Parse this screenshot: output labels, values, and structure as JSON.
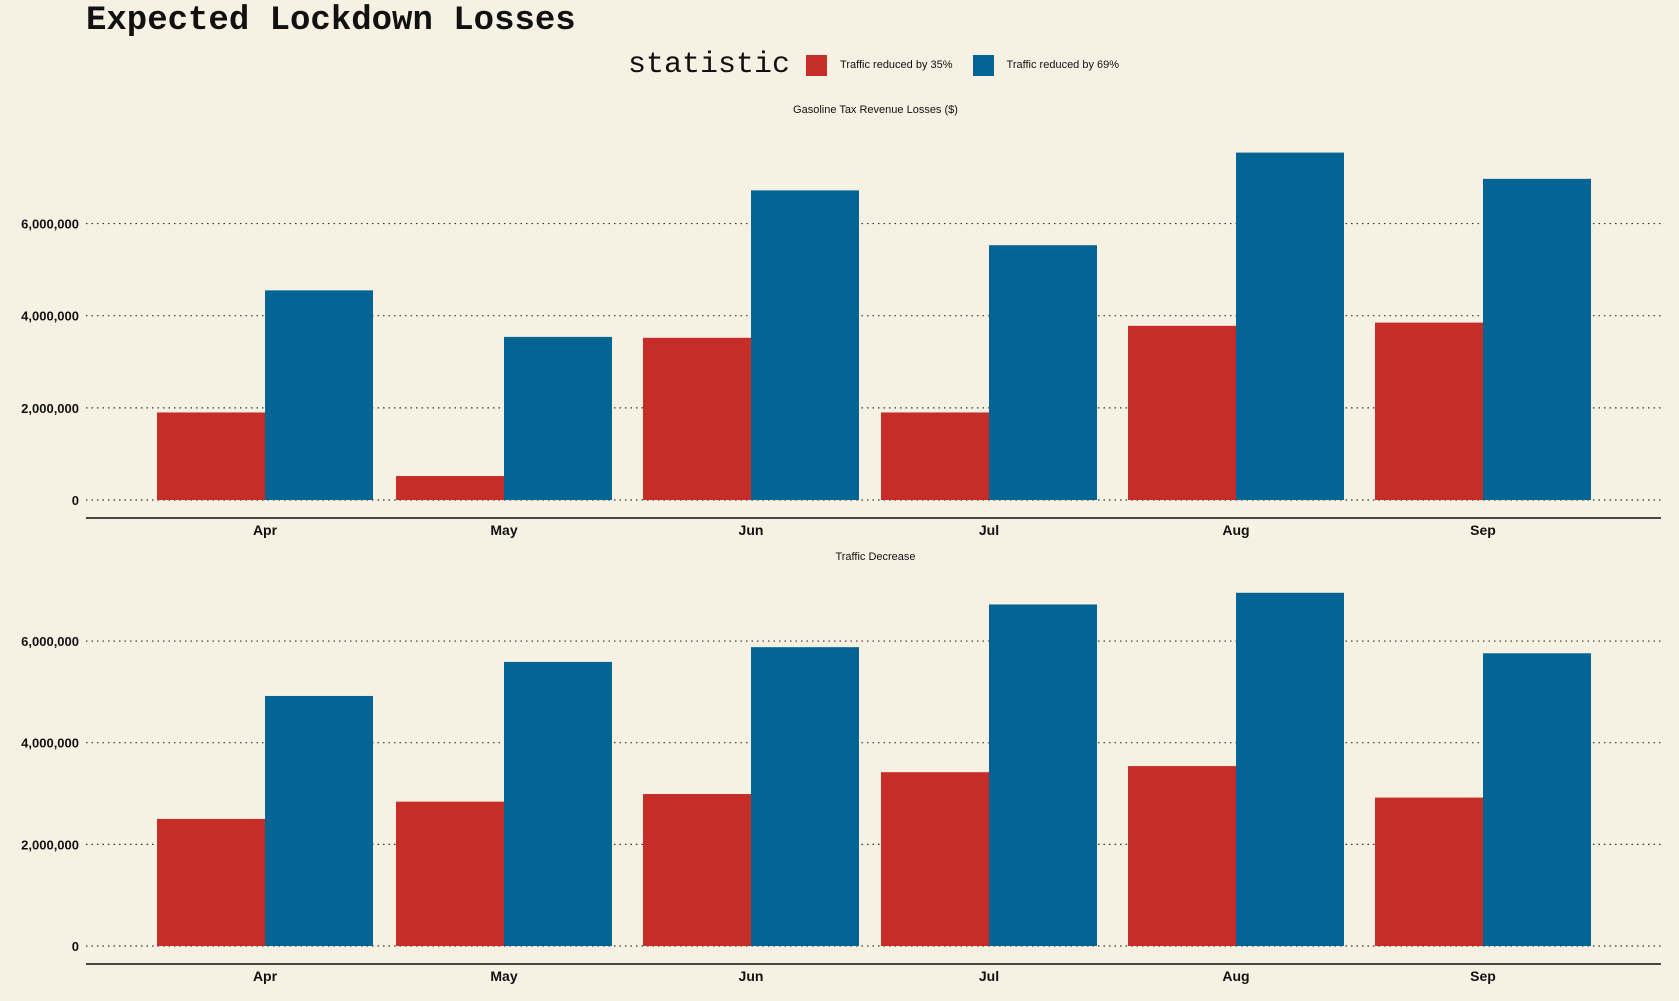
{
  "title": "Expected Lockdown Losses",
  "legend": {
    "title": "statistic",
    "items": [
      {
        "label": "Traffic reduced by 35%",
        "color": "#c62d28"
      },
      {
        "label": "Traffic reduced by 69%",
        "color": "#046494"
      }
    ]
  },
  "chart_data": [
    {
      "type": "bar",
      "title": "Gasoline Tax Revenue Losses ($)",
      "categories": [
        "Apr",
        "May",
        "Jun",
        "Jul",
        "Aug",
        "Sep"
      ],
      "series": [
        {
          "name": "Traffic reduced by 35%",
          "values": [
            1900000,
            520000,
            3520000,
            1900000,
            3780000,
            3850000
          ]
        },
        {
          "name": "Traffic reduced by 69%",
          "values": [
            4550000,
            3540000,
            6720000,
            5530000,
            7540000,
            6970000
          ]
        }
      ],
      "yticks": [
        0,
        2000000,
        4000000,
        6000000
      ],
      "ytick_labels": [
        "0",
        "2,000,000",
        "4,000,000",
        "6,000,000"
      ],
      "ylim": [
        0,
        7900000
      ],
      "grid": "horizontal dotted"
    },
    {
      "type": "bar",
      "title": "Traffic Decrease",
      "categories": [
        "Apr",
        "May",
        "Jun",
        "Jul",
        "Aug",
        "Sep"
      ],
      "series": [
        {
          "name": "Traffic reduced by 35%",
          "values": [
            2500000,
            2840000,
            2990000,
            3420000,
            3540000,
            2920000
          ]
        },
        {
          "name": "Traffic reduced by 69%",
          "values": [
            4920000,
            5590000,
            5880000,
            6720000,
            6950000,
            5760000
          ]
        }
      ],
      "yticks": [
        0,
        2000000,
        4000000,
        6000000
      ],
      "ytick_labels": [
        "0",
        "2,000,000",
        "4,000,000",
        "6,000,000"
      ],
      "ylim": [
        0,
        7300000
      ],
      "grid": "horizontal dotted"
    }
  ]
}
